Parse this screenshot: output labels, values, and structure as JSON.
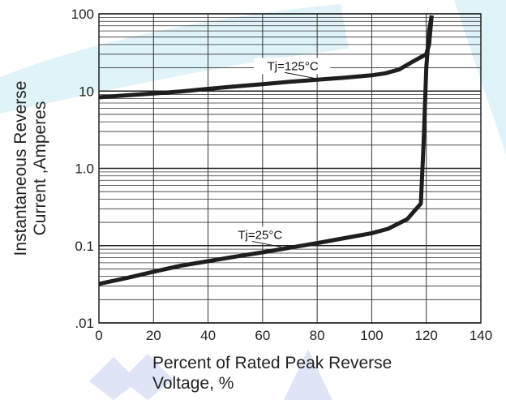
{
  "chart_data": {
    "type": "line",
    "x_axis": {
      "label_lines": [
        "Percent of Rated Peak Reverse",
        "Voltage, %"
      ],
      "ticks": [
        0,
        20,
        40,
        60,
        80,
        100,
        120,
        140
      ],
      "tick_labels": [
        "0",
        "20",
        "40",
        "60",
        "80",
        "100",
        "120",
        "140"
      ],
      "range": [
        0,
        140
      ]
    },
    "y_axis": {
      "label_lines": [
        "Instantaneous Reverse",
        "Current ,Amperes"
      ],
      "scale": "log",
      "ticks": [
        0.01,
        0.1,
        1,
        10,
        100
      ],
      "tick_labels": [
        ".01",
        "0.1",
        "1.0",
        "10",
        "100"
      ],
      "range": [
        0.01,
        100
      ]
    },
    "grid": true,
    "series": [
      {
        "name": "Tj=125°C",
        "color": "#1e1e1e",
        "x": [
          0,
          10,
          20,
          30,
          40,
          50,
          60,
          70,
          80,
          90,
          100,
          105,
          110,
          115,
          120,
          121,
          122
        ],
        "y": [
          8.3,
          8.8,
          9.3,
          9.9,
          10.7,
          11.5,
          12.3,
          13.2,
          14.0,
          14.9,
          16.0,
          17.0,
          19.0,
          24.0,
          30.0,
          40.0,
          95.0
        ]
      },
      {
        "name": "Tj=25°C",
        "color": "#1e1e1e",
        "x": [
          0,
          10,
          20,
          30,
          40,
          50,
          60,
          70,
          80,
          90,
          100,
          106,
          113,
          118,
          119,
          120,
          121,
          122
        ],
        "y": [
          0.032,
          0.038,
          0.046,
          0.055,
          0.063,
          0.072,
          0.082,
          0.094,
          0.108,
          0.125,
          0.145,
          0.165,
          0.22,
          0.35,
          2.0,
          20.0,
          60.0,
          95.0
        ]
      }
    ],
    "annotations": [
      {
        "text": "Tj=125°C",
        "series": 0
      },
      {
        "text": "Tj=25°C",
        "series": 1
      }
    ],
    "watermark_colors": [
      "#dff3f8",
      "#e0e4f7"
    ]
  }
}
